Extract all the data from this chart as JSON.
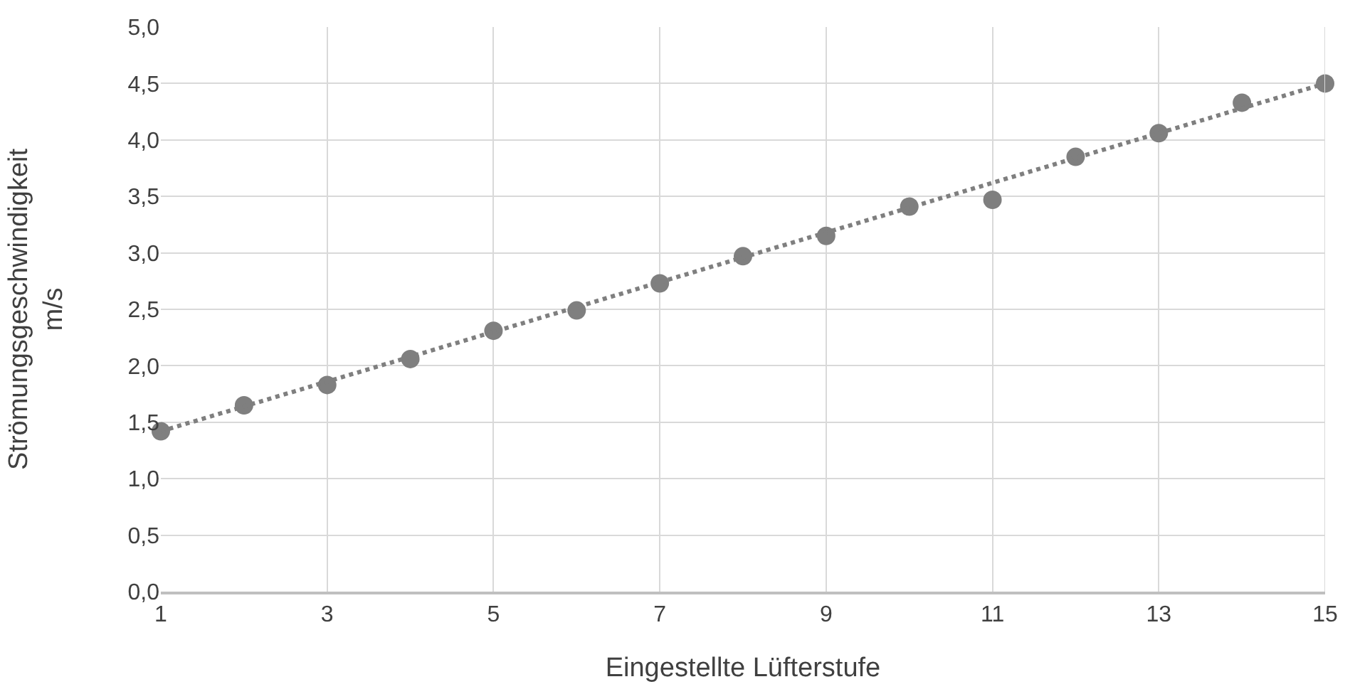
{
  "chart_data": {
    "type": "scatter",
    "xlabel": "Eingestellte Lüfterstufe",
    "ylabel": "Strömungsgeschwindigkeit\nm/s",
    "x": [
      1,
      2,
      3,
      4,
      5,
      6,
      7,
      8,
      9,
      10,
      11,
      12,
      13,
      14,
      15
    ],
    "series": [
      {
        "color": "#7f7f7f",
        "marker": "circle",
        "values": [
          1.42,
          1.65,
          1.83,
          2.06,
          2.31,
          2.49,
          2.73,
          2.97,
          3.15,
          3.41,
          3.47,
          3.85,
          4.06,
          4.33,
          4.5
        ]
      },
      {
        "type": "line",
        "color": "#7f7f7f",
        "line_style": "dotted",
        "marker": "none",
        "x": [
          1,
          15
        ],
        "values": [
          1.42,
          4.5
        ]
      }
    ],
    "xlim": [
      1,
      15
    ],
    "xticks": [
      1,
      3,
      5,
      7,
      9,
      11,
      13,
      15
    ],
    "ylim": [
      0,
      5
    ],
    "yticks": [
      {
        "value": 0,
        "label": "0,0"
      },
      {
        "value": 0.5,
        "label": "0,5"
      },
      {
        "value": 1,
        "label": "1,0"
      },
      {
        "value": 1.5,
        "label": "1,5"
      },
      {
        "value": 2,
        "label": "2,0"
      },
      {
        "value": 2.5,
        "label": "2,5"
      },
      {
        "value": 3,
        "label": "3,0"
      },
      {
        "value": 3.5,
        "label": "3,5"
      },
      {
        "value": 4,
        "label": "4,0"
      },
      {
        "value": 4.5,
        "label": "4,5"
      },
      {
        "value": 5,
        "label": "5,0"
      }
    ],
    "grid": true
  }
}
